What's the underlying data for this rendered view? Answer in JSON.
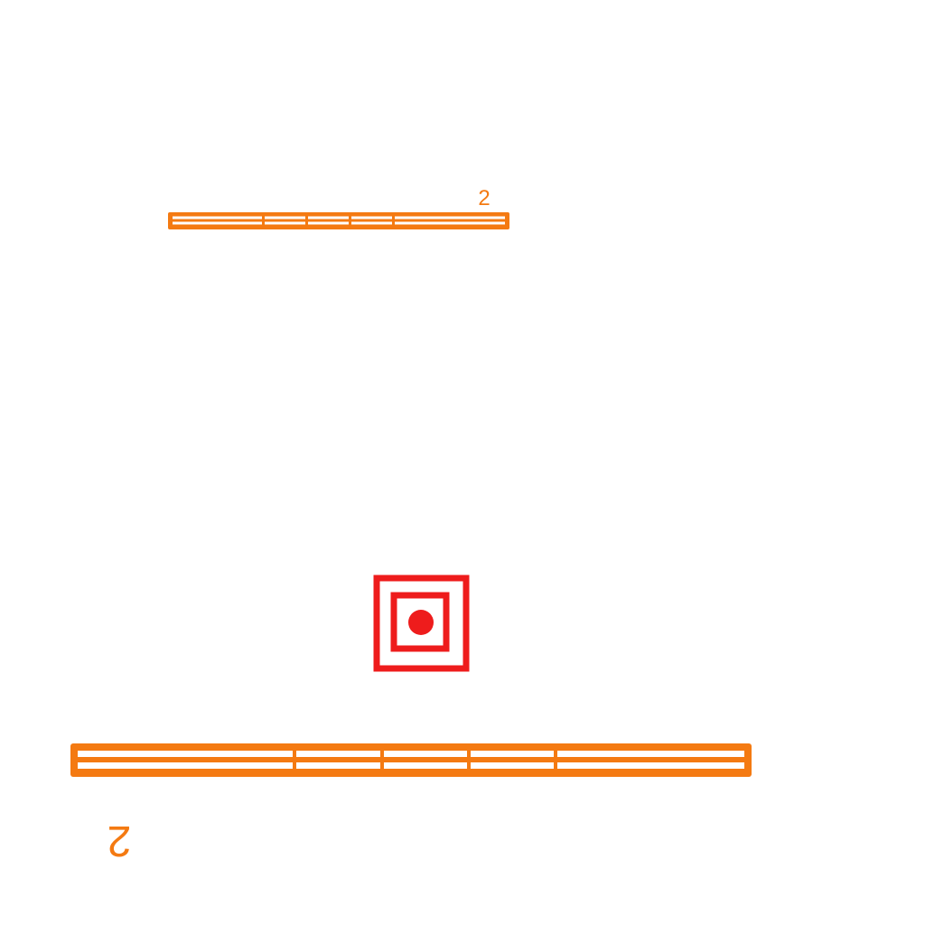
{
  "scene": {
    "background_color": "#ffffff",
    "platform_color": "#f47a12",
    "target_color": "#ee1c1c",
    "platforms": [
      {
        "label": "2",
        "label_upside_down": false,
        "segments": 5
      },
      {
        "label": "2",
        "label_upside_down": true,
        "segments": 5
      }
    ],
    "target": {
      "icon": "target-icon"
    }
  }
}
